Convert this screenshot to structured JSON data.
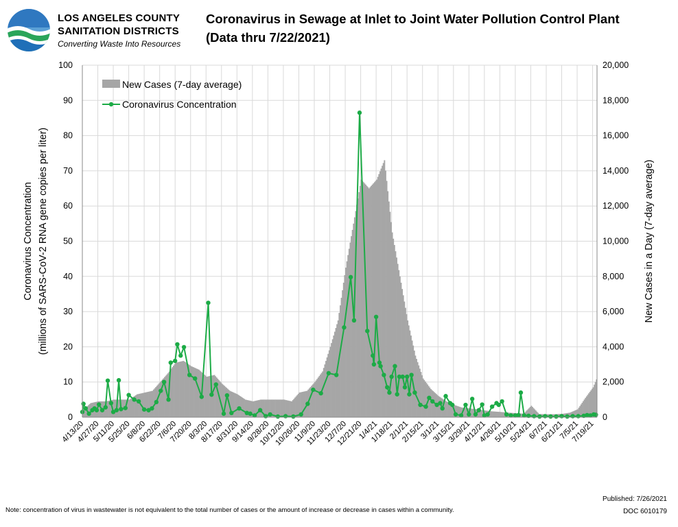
{
  "header": {
    "org_line1": "LOS ANGELES COUNTY",
    "org_line2": "SANITATION DISTRICTS",
    "tagline": "Converting Waste Into Resources",
    "title": "Coronavirus in Sewage at Inlet to Joint Water Pollution Control Plant",
    "subtitle": "(Data thru 7/22/2021)"
  },
  "footer": {
    "note": "Note: concentration of virus in wastewater is not equivalent to the total number of cases or the amount of increase or decrease in cases within a community.",
    "published": "Published: 7/26/2021",
    "doc": "DOC 6010179"
  },
  "colors": {
    "bar": "#a6a6a6",
    "line": "#1cab46",
    "grid": "#d9d9d9"
  },
  "chart_data": {
    "type": "bar+line",
    "x_start": "2020-04-13",
    "x_end": "2021-07-22",
    "grid": true,
    "legend_position": "top-left",
    "xtick_labels": [
      "4/13/20",
      "4/27/20",
      "5/11/20",
      "5/25/20",
      "6/8/20",
      "6/22/20",
      "7/6/20",
      "7/20/20",
      "8/3/20",
      "8/17/20",
      "8/31/20",
      "9/14/20",
      "9/28/20",
      "10/12/20",
      "10/26/20",
      "11/9/20",
      "11/23/20",
      "12/7/20",
      "12/21/20",
      "1/4/21",
      "1/18/21",
      "2/1/21",
      "2/15/21",
      "3/1/21",
      "3/15/21",
      "3/29/21",
      "4/12/21",
      "4/26/21",
      "5/10/21",
      "5/24/21",
      "6/7/21",
      "6/21/21",
      "7/5/21",
      "7/19/21"
    ],
    "y_left": {
      "label": "Coronavirus Concentration\n(millions of SARS-CoV-2 RNA gene copies per liter)",
      "range": [
        0,
        100
      ],
      "ticks": [
        "0",
        "10",
        "20",
        "30",
        "40",
        "50",
        "60",
        "70",
        "80",
        "90",
        "100"
      ]
    },
    "y_right": {
      "label": "New Cases in a Day (7-day average)",
      "range": [
        0,
        20000
      ],
      "ticks": [
        "0",
        "2,000",
        "4,000",
        "6,000",
        "8,000",
        "10,000",
        "12,000",
        "14,000",
        "16,000",
        "18,000",
        "20,000"
      ]
    },
    "series": [
      {
        "name": "New Cases (7-day average)",
        "type": "bar",
        "axis": "right",
        "points": [
          [
            "2020-04-13",
            400
          ],
          [
            "2020-04-20",
            800
          ],
          [
            "2020-04-27",
            900
          ],
          [
            "2020-05-04",
            900
          ],
          [
            "2020-05-11",
            1000
          ],
          [
            "2020-05-18",
            1000
          ],
          [
            "2020-05-25",
            1000
          ],
          [
            "2020-06-01",
            1300
          ],
          [
            "2020-06-08",
            1400
          ],
          [
            "2020-06-15",
            1500
          ],
          [
            "2020-06-22",
            2000
          ],
          [
            "2020-06-29",
            2500
          ],
          [
            "2020-07-06",
            3100
          ],
          [
            "2020-07-13",
            3200
          ],
          [
            "2020-07-20",
            2900
          ],
          [
            "2020-07-27",
            2700
          ],
          [
            "2020-08-03",
            2300
          ],
          [
            "2020-08-10",
            2400
          ],
          [
            "2020-08-17",
            1900
          ],
          [
            "2020-08-24",
            1500
          ],
          [
            "2020-08-31",
            1300
          ],
          [
            "2020-09-07",
            1000
          ],
          [
            "2020-09-14",
            900
          ],
          [
            "2020-09-21",
            1000
          ],
          [
            "2020-09-28",
            1000
          ],
          [
            "2020-10-05",
            1000
          ],
          [
            "2020-10-12",
            1000
          ],
          [
            "2020-10-19",
            900
          ],
          [
            "2020-10-26",
            1400
          ],
          [
            "2020-11-02",
            1500
          ],
          [
            "2020-11-09",
            2000
          ],
          [
            "2020-11-16",
            2600
          ],
          [
            "2020-11-23",
            4000
          ],
          [
            "2020-11-30",
            5500
          ],
          [
            "2020-12-07",
            8500
          ],
          [
            "2020-12-14",
            11000
          ],
          [
            "2020-12-21",
            13500
          ],
          [
            "2020-12-28",
            13000
          ],
          [
            "2021-01-04",
            13500
          ],
          [
            "2021-01-11",
            14600
          ],
          [
            "2021-01-18",
            10500
          ],
          [
            "2021-01-25",
            8000
          ],
          [
            "2021-02-01",
            5500
          ],
          [
            "2021-02-08",
            3500
          ],
          [
            "2021-02-15",
            2200
          ],
          [
            "2021-02-22",
            1600
          ],
          [
            "2021-03-01",
            1200
          ],
          [
            "2021-03-08",
            900
          ],
          [
            "2021-03-15",
            700
          ],
          [
            "2021-03-22",
            550
          ],
          [
            "2021-03-29",
            500
          ],
          [
            "2021-04-05",
            450
          ],
          [
            "2021-04-12",
            380
          ],
          [
            "2021-04-19",
            330
          ],
          [
            "2021-04-26",
            300
          ],
          [
            "2021-05-03",
            260
          ],
          [
            "2021-05-10",
            230
          ],
          [
            "2021-05-17",
            200
          ],
          [
            "2021-05-24",
            650
          ],
          [
            "2021-05-31",
            180
          ],
          [
            "2021-06-07",
            170
          ],
          [
            "2021-06-14",
            170
          ],
          [
            "2021-06-21",
            190
          ],
          [
            "2021-06-28",
            260
          ],
          [
            "2021-07-05",
            450
          ],
          [
            "2021-07-12",
            1100
          ],
          [
            "2021-07-19",
            1700
          ],
          [
            "2021-07-22",
            2150
          ]
        ]
      },
      {
        "name": "Coronavirus Concentration",
        "type": "line",
        "axis": "left",
        "points": [
          [
            "2020-04-13",
            1.5
          ],
          [
            "2020-04-14",
            3.8
          ],
          [
            "2020-04-16",
            2.5
          ],
          [
            "2020-04-19",
            1.0
          ],
          [
            "2020-04-22",
            2.0
          ],
          [
            "2020-04-24",
            2.5
          ],
          [
            "2020-04-26",
            2.0
          ],
          [
            "2020-04-28",
            3.6
          ],
          [
            "2020-05-01",
            2.0
          ],
          [
            "2020-05-04",
            2.8
          ],
          [
            "2020-05-06",
            10.4
          ],
          [
            "2020-05-09",
            4.0
          ],
          [
            "2020-05-11",
            1.5
          ],
          [
            "2020-05-14",
            2.0
          ],
          [
            "2020-05-16",
            10.5
          ],
          [
            "2020-05-18",
            2.3
          ],
          [
            "2020-05-22",
            2.6
          ],
          [
            "2020-05-25",
            6.3
          ],
          [
            "2020-05-30",
            5.0
          ],
          [
            "2020-06-03",
            4.5
          ],
          [
            "2020-06-08",
            2.2
          ],
          [
            "2020-06-12",
            2.0
          ],
          [
            "2020-06-15",
            2.5
          ],
          [
            "2020-06-19",
            4.3
          ],
          [
            "2020-06-23",
            7.5
          ],
          [
            "2020-06-26",
            10.0
          ],
          [
            "2020-06-30",
            5.0
          ],
          [
            "2020-07-02",
            15.5
          ],
          [
            "2020-07-06",
            16.0
          ],
          [
            "2020-07-08",
            20.7
          ],
          [
            "2020-07-11",
            17.5
          ],
          [
            "2020-07-14",
            19.9
          ],
          [
            "2020-07-19",
            12.0
          ],
          [
            "2020-07-24",
            11.0
          ],
          [
            "2020-07-30",
            5.8
          ],
          [
            "2020-08-05",
            32.5
          ],
          [
            "2020-08-08",
            6.4
          ],
          [
            "2020-08-12",
            9.3
          ],
          [
            "2020-08-19",
            1.0
          ],
          [
            "2020-08-22",
            6.2
          ],
          [
            "2020-08-26",
            1.2
          ],
          [
            "2020-09-02",
            2.5
          ],
          [
            "2020-09-09",
            1.2
          ],
          [
            "2020-09-12",
            1.0
          ],
          [
            "2020-09-16",
            0.5
          ],
          [
            "2020-09-21",
            2.0
          ],
          [
            "2020-09-26",
            0.3
          ],
          [
            "2020-09-30",
            0.8
          ],
          [
            "2020-10-07",
            0.2
          ],
          [
            "2020-10-14",
            0.3
          ],
          [
            "2020-10-21",
            0.2
          ],
          [
            "2020-10-28",
            0.8
          ],
          [
            "2020-11-03",
            3.8
          ],
          [
            "2020-11-08",
            7.8
          ],
          [
            "2020-11-15",
            6.8
          ],
          [
            "2020-11-22",
            12.5
          ],
          [
            "2020-11-29",
            12.0
          ],
          [
            "2020-12-06",
            25.5
          ],
          [
            "2020-12-12",
            39.8
          ],
          [
            "2020-12-15",
            27.5
          ],
          [
            "2020-12-20",
            86.5
          ],
          [
            "2020-12-27",
            24.5
          ],
          [
            "2021-01-01",
            17.5
          ],
          [
            "2021-01-02",
            15.0
          ],
          [
            "2021-01-04",
            28.5
          ],
          [
            "2021-01-07",
            15.5
          ],
          [
            "2021-01-08",
            14.5
          ],
          [
            "2021-01-11",
            12.0
          ],
          [
            "2021-01-14",
            8.5
          ],
          [
            "2021-01-16",
            7.0
          ],
          [
            "2021-01-18",
            11.5
          ],
          [
            "2021-01-21",
            14.5
          ],
          [
            "2021-01-23",
            6.5
          ],
          [
            "2021-01-25",
            11.5
          ],
          [
            "2021-01-28",
            11.5
          ],
          [
            "2021-01-30",
            8.5
          ],
          [
            "2021-02-01",
            11.5
          ],
          [
            "2021-02-03",
            6.5
          ],
          [
            "2021-02-05",
            12.0
          ],
          [
            "2021-02-08",
            7.0
          ],
          [
            "2021-02-13",
            3.5
          ],
          [
            "2021-02-18",
            3.0
          ],
          [
            "2021-02-21",
            5.5
          ],
          [
            "2021-02-24",
            4.5
          ],
          [
            "2021-02-28",
            3.5
          ],
          [
            "2021-03-03",
            4.0
          ],
          [
            "2021-03-05",
            2.5
          ],
          [
            "2021-03-08",
            6.0
          ],
          [
            "2021-03-12",
            4.0
          ],
          [
            "2021-03-14",
            3.5
          ],
          [
            "2021-03-17",
            0.8
          ],
          [
            "2021-03-22",
            0.5
          ],
          [
            "2021-03-26",
            3.5
          ],
          [
            "2021-03-29",
            0.8
          ],
          [
            "2021-04-01",
            5.2
          ],
          [
            "2021-04-04",
            0.8
          ],
          [
            "2021-04-07",
            2.0
          ],
          [
            "2021-04-10",
            3.6
          ],
          [
            "2021-04-12",
            0.5
          ],
          [
            "2021-04-15",
            0.8
          ],
          [
            "2021-04-19",
            3.0
          ],
          [
            "2021-04-23",
            4.0
          ],
          [
            "2021-04-25",
            3.5
          ],
          [
            "2021-04-28",
            4.5
          ],
          [
            "2021-05-02",
            0.8
          ],
          [
            "2021-05-06",
            0.5
          ],
          [
            "2021-05-10",
            0.5
          ],
          [
            "2021-05-13",
            0.6
          ],
          [
            "2021-05-15",
            7.0
          ],
          [
            "2021-05-18",
            0.5
          ],
          [
            "2021-05-22",
            0.4
          ],
          [
            "2021-05-27",
            0.3
          ],
          [
            "2021-06-01",
            0.2
          ],
          [
            "2021-06-06",
            0.3
          ],
          [
            "2021-06-11",
            0.2
          ],
          [
            "2021-06-16",
            0.2
          ],
          [
            "2021-06-21",
            0.3
          ],
          [
            "2021-06-26",
            0.2
          ],
          [
            "2021-07-01",
            0.3
          ],
          [
            "2021-07-06",
            0.3
          ],
          [
            "2021-07-11",
            0.4
          ],
          [
            "2021-07-14",
            0.6
          ],
          [
            "2021-07-17",
            0.5
          ],
          [
            "2021-07-20",
            0.8
          ],
          [
            "2021-07-22",
            0.7
          ]
        ]
      }
    ]
  }
}
